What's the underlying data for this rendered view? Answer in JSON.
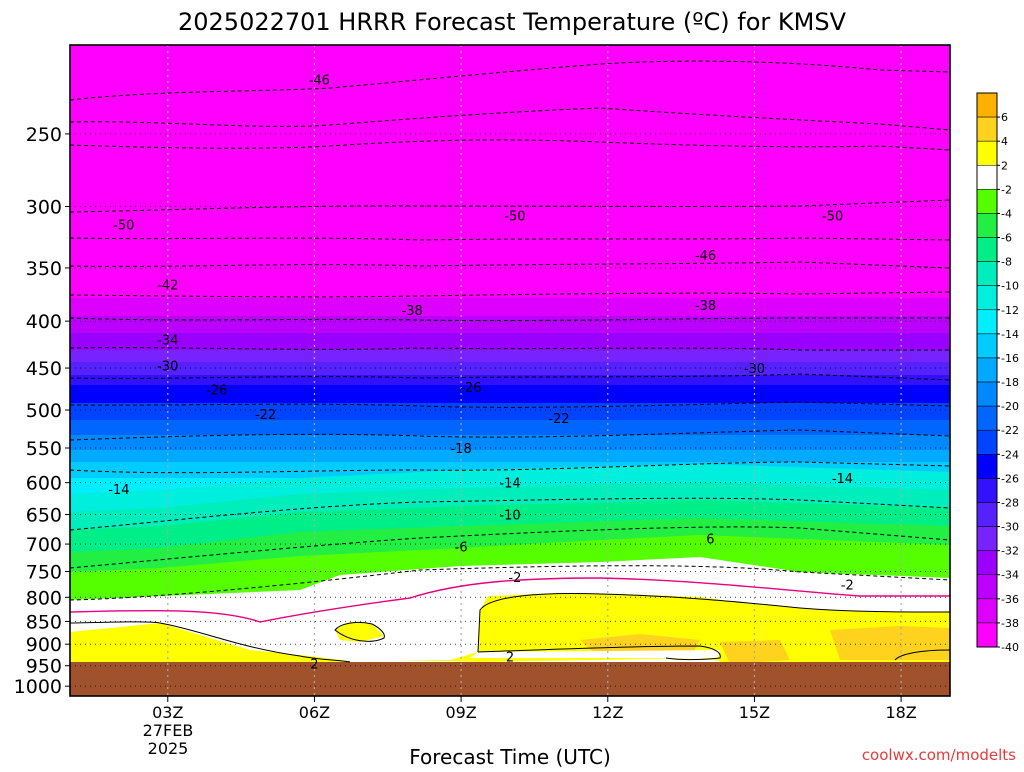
{
  "chart_data": {
    "type": "heatmap",
    "title": "2025022701 HRRR Forecast Temperature (ºC) for KMSV",
    "xlabel": "Forecast Time (UTC)",
    "ylabel": "",
    "x_ticks": [
      "03Z",
      "06Z",
      "09Z",
      "12Z",
      "15Z",
      "18Z"
    ],
    "x_date_label": [
      "27FEB",
      "2025"
    ],
    "x_range_hours": [
      1,
      19
    ],
    "y_ticks": [
      250,
      300,
      350,
      400,
      450,
      500,
      550,
      600,
      650,
      700,
      750,
      800,
      850,
      900,
      950,
      1000
    ],
    "y_range_hpa": [
      200,
      1025
    ],
    "y_scale": "log-pressure",
    "grid": true,
    "colorbar": {
      "placement": "right",
      "labels": [
        "6",
        "4",
        "2",
        "-2",
        "-4",
        "-6",
        "-8",
        "-10",
        "-12",
        "-14",
        "-16",
        "-18",
        "-20",
        "-22",
        "-24",
        "-26",
        "-28",
        "-30",
        "-32",
        "-34",
        "-36",
        "-38",
        "-40"
      ],
      "colors": [
        "#ffb000",
        "#ffd21e",
        "#ffff00",
        "#ffffff",
        "#55ff00",
        "#22ee44",
        "#00ee88",
        "#00eebb",
        "#00eedd",
        "#00eeff",
        "#00ccff",
        "#00aaff",
        "#0088ff",
        "#0066ff",
        "#0044ff",
        "#0000ff",
        "#3311ff",
        "#5522ff",
        "#7722ff",
        "#9900ff",
        "#bb00ff",
        "#dd00ff",
        "#ff00ff"
      ]
    },
    "ground_color": "#a0522d",
    "freezing_line_color": "#e8007f",
    "isotherm_labels": [
      {
        "value": "-46",
        "hour": 6.1,
        "hpa": 218
      },
      {
        "value": "-50",
        "hour": 2.1,
        "hpa": 314
      },
      {
        "value": "-50",
        "hour": 10.1,
        "hpa": 307
      },
      {
        "value": "-50",
        "hour": 16.6,
        "hpa": 307
      },
      {
        "value": "-46",
        "hour": 14.0,
        "hpa": 339
      },
      {
        "value": "-42",
        "hour": 3.0,
        "hpa": 365
      },
      {
        "value": "-38",
        "hour": 8.0,
        "hpa": 389
      },
      {
        "value": "-38",
        "hour": 14.0,
        "hpa": 384
      },
      {
        "value": "-34",
        "hour": 3.0,
        "hpa": 419
      },
      {
        "value": "-30",
        "hour": 3.0,
        "hpa": 447
      },
      {
        "value": "-30",
        "hour": 15.0,
        "hpa": 450
      },
      {
        "value": "-26",
        "hour": 4.0,
        "hpa": 475
      },
      {
        "value": "-26",
        "hour": 9.2,
        "hpa": 472
      },
      {
        "value": "-22",
        "hour": 5.0,
        "hpa": 505
      },
      {
        "value": "-22",
        "hour": 11.0,
        "hpa": 510
      },
      {
        "value": "-18",
        "hour": 9.0,
        "hpa": 550
      },
      {
        "value": "-14",
        "hour": 2.0,
        "hpa": 610
      },
      {
        "value": "-14",
        "hour": 10.0,
        "hpa": 600
      },
      {
        "value": "-14",
        "hour": 16.8,
        "hpa": 593
      },
      {
        "value": "-10",
        "hour": 10.0,
        "hpa": 650
      },
      {
        "value": "-6",
        "hour": 9.0,
        "hpa": 704
      },
      {
        "value": "6",
        "hour": 14.1,
        "hpa": 690
      },
      {
        "value": "-2",
        "hour": 10.1,
        "hpa": 760
      },
      {
        "value": "-2",
        "hour": 16.9,
        "hpa": 775
      },
      {
        "value": "2",
        "hour": 6.0,
        "hpa": 945
      },
      {
        "value": "2",
        "hour": 10.0,
        "hpa": 928
      }
    ]
  },
  "watermark": "coolwx.com/modelts"
}
